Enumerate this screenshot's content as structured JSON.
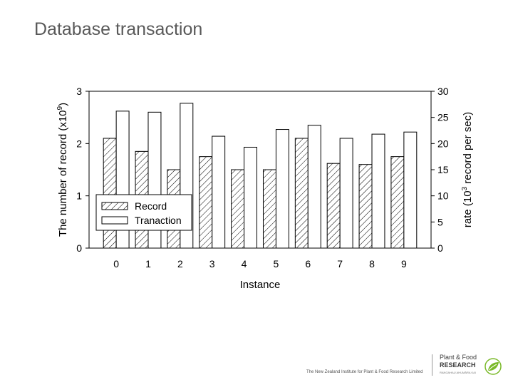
{
  "slide": {
    "title": "Database transaction",
    "footer": "The New Zealand Institute for Plant & Food Research Limited"
  },
  "logo": {
    "line1": "Plant & Food",
    "line2": "RESEARCH",
    "line3": "RANGAHAU AHUMĀRA KAI",
    "accent_color": "#7ab929"
  },
  "chart_data": {
    "type": "bar",
    "categories": [
      "0",
      "1",
      "2",
      "3",
      "4",
      "5",
      "6",
      "7",
      "8",
      "9"
    ],
    "xlabel": "Instance",
    "series": [
      {
        "name": "Record",
        "axis": "left",
        "pattern": "hatched",
        "values": [
          2.1,
          1.85,
          1.5,
          1.75,
          1.5,
          1.5,
          2.1,
          1.62,
          1.6,
          1.75
        ]
      },
      {
        "name": "Tranaction",
        "axis": "right",
        "pattern": "white",
        "values": [
          26.2,
          26.0,
          27.7,
          21.4,
          19.3,
          22.7,
          23.5,
          21.0,
          21.8,
          22.2
        ]
      }
    ],
    "y_left": {
      "label_prefix": "The number of record (x10",
      "label_exp": "9",
      "label_suffix": ")",
      "lim": [
        0,
        3
      ],
      "ticks": [
        "0",
        "1",
        "2",
        "3"
      ]
    },
    "y_right": {
      "label_prefix": "rate (10",
      "label_exp": "3",
      "label_suffix": " record per sec)",
      "lim": [
        0,
        30
      ],
      "ticks": [
        "0",
        "5",
        "10",
        "15",
        "20",
        "25",
        "30"
      ]
    },
    "legend_position": "lower-left",
    "grid": false
  }
}
